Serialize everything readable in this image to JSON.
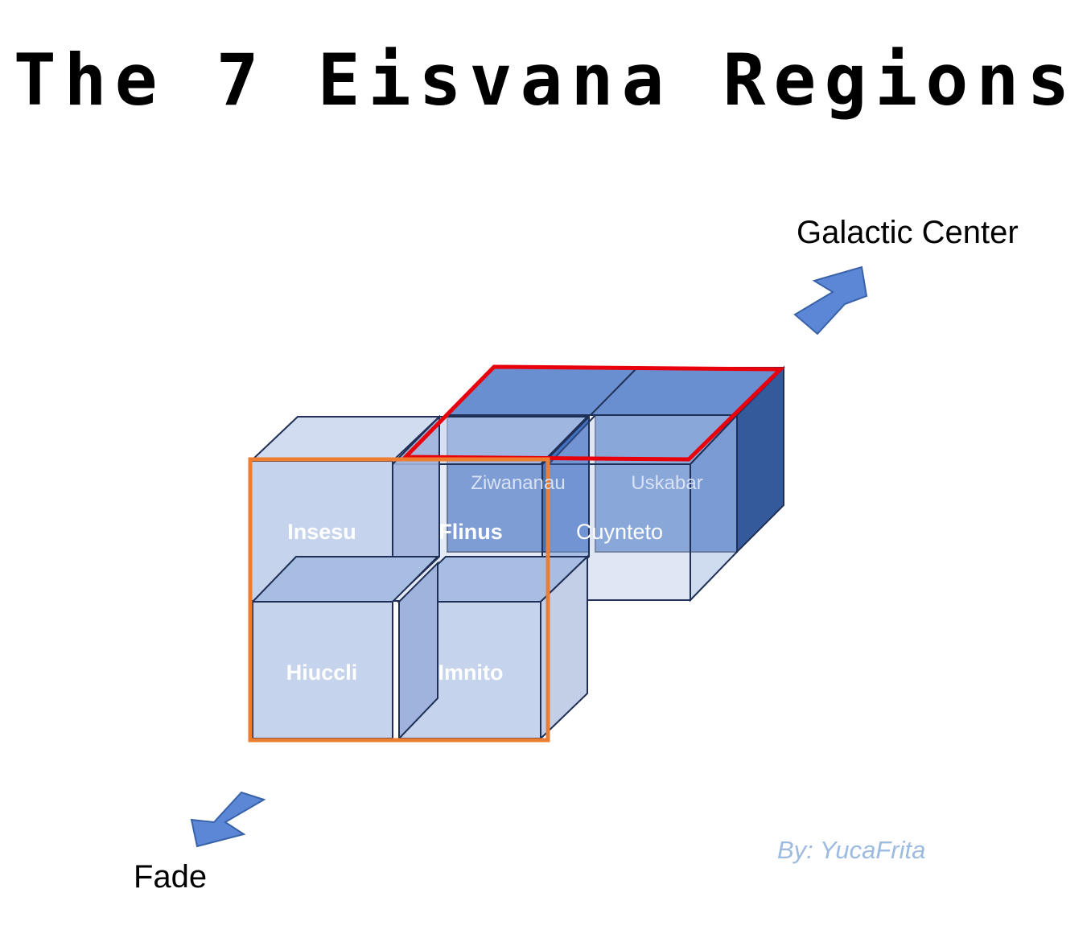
{
  "title": "The 7 Eisvana Regions",
  "directions": {
    "galactic_center": "Galactic Center",
    "fade": "Fade"
  },
  "regions": {
    "insesu": "Insesu",
    "flinus": "Flinus",
    "cuynteto": "Cuynteto",
    "ziwananau": "Ziwananau",
    "uskabar": "Uskabar",
    "hiuccli": "Hiuccli",
    "imnito": "Imnito"
  },
  "credit": "By: YucaFrita",
  "colors": {
    "light_cube": "#c5d3ec",
    "mid_face": "#a7bde2",
    "dark_cube_front": "#4472c4",
    "dark_cube_top": "#6a8fd0",
    "dark_cube_side": "#355a9c",
    "outline": "#1f2f55",
    "arrow": "#5b87d6",
    "red_highlight": "#e8000b",
    "orange_highlight": "#ed7d31",
    "credit": "#9dbbe0"
  }
}
